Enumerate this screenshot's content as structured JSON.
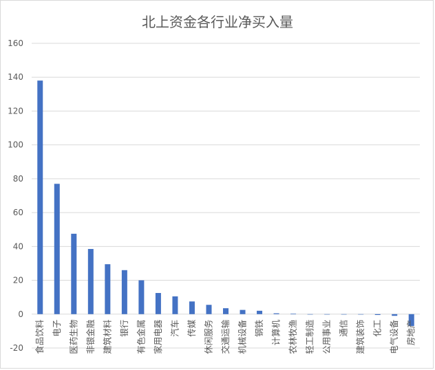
{
  "chart_data": {
    "type": "bar",
    "title": "北上资金各行业净买入量",
    "xlabel": "",
    "ylabel": "",
    "ylim": [
      -20,
      160
    ],
    "yticks": [
      -20,
      0,
      20,
      40,
      60,
      80,
      100,
      120,
      140,
      160
    ],
    "grid": true,
    "legend": "none",
    "bar_color": "#4472c4",
    "categories": [
      "食品饮料",
      "电子",
      "医药生物",
      "非银金融",
      "建筑材料",
      "银行",
      "有色金属",
      "家用电器",
      "汽车",
      "传媒",
      "休闲服务",
      "交通运输",
      "机械设备",
      "钢铁",
      "计算机",
      "农林牧渔",
      "轻工制造",
      "公用事业",
      "通信",
      "建筑装饰",
      "化工",
      "电气设备",
      "房地产"
    ],
    "values": [
      138,
      77,
      47.5,
      38.5,
      29.5,
      26,
      20,
      12.5,
      10.5,
      7.5,
      5.5,
      3.5,
      2.5,
      2,
      0.5,
      0.3,
      0,
      0,
      0,
      0,
      -0.5,
      -1,
      -7
    ]
  }
}
